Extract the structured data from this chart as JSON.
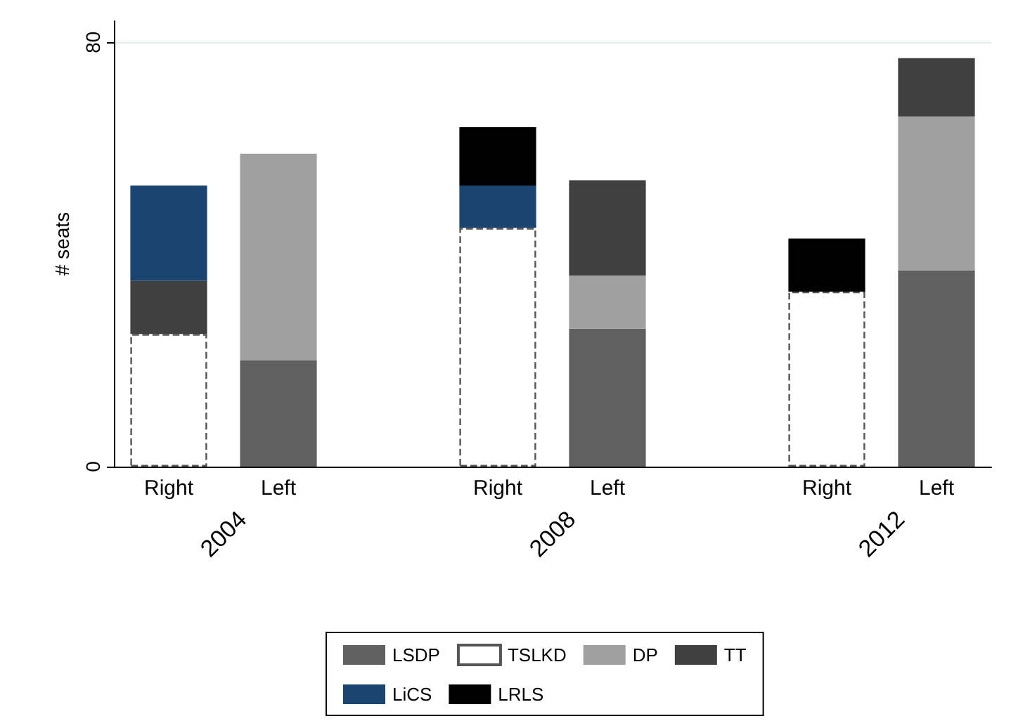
{
  "chart_data": {
    "type": "bar",
    "stacked": true,
    "ylabel": "# seats",
    "categories": [
      "Right",
      "Left",
      null,
      "Right",
      "Left",
      null,
      "Right",
      "Left"
    ],
    "annotations": [
      "2004",
      "2008",
      "2012"
    ],
    "series": [
      {
        "name": "LSDP",
        "color": "#606060",
        "values": [
          null,
          20,
          null,
          null,
          26,
          null,
          null,
          37
        ]
      },
      {
        "name": "TSLKD",
        "color": "#ffffff",
        "line_style": "dashed",
        "values": [
          25,
          null,
          null,
          45,
          null,
          null,
          33,
          null
        ]
      },
      {
        "name": "DP",
        "color": "#a0a0a0",
        "values": [
          null,
          39,
          null,
          null,
          10,
          null,
          null,
          29
        ]
      },
      {
        "name": "TT",
        "color": "#404040",
        "values": [
          10,
          null,
          null,
          null,
          18,
          null,
          null,
          11
        ]
      },
      {
        "name": "LiCS",
        "color": "#1a4570",
        "values": [
          18,
          null,
          null,
          8,
          null,
          null,
          null,
          null
        ]
      },
      {
        "name": "LRLS",
        "color": "#000000",
        "values": [
          null,
          null,
          null,
          11,
          null,
          null,
          10,
          null
        ]
      }
    ],
    "ylim": [
      0,
      84
    ],
    "yticks": [
      0,
      80
    ],
    "grid": "y",
    "legend": "bottom"
  }
}
